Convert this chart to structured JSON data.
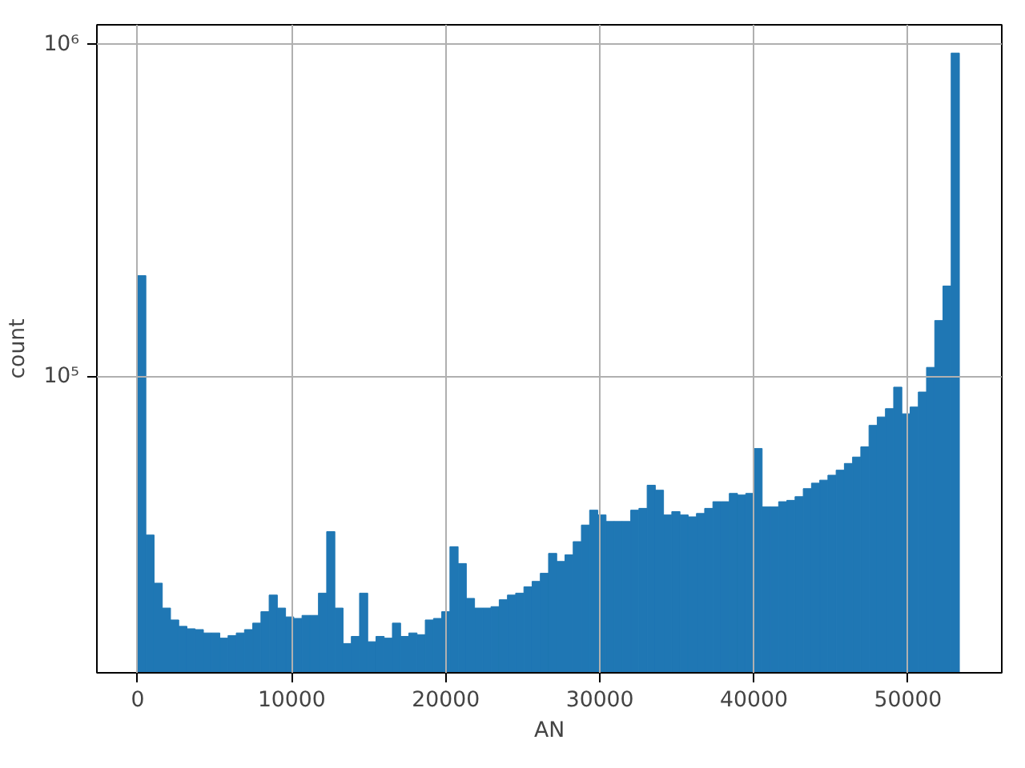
{
  "chart_data": {
    "type": "histogram",
    "xlabel": "AN",
    "ylabel": "count",
    "color": "#1f77b4",
    "log": "y",
    "grid": true,
    "bins": [
      0,
      533,
      1067,
      1600,
      2133,
      2667,
      3200,
      3733,
      4267,
      4800,
      5333,
      5867,
      6400,
      6933,
      7467,
      8000,
      8533,
      9067,
      9600,
      10133,
      10667,
      11200,
      11733,
      12267,
      12800,
      13333,
      13867,
      14400,
      14933,
      15467,
      16000,
      16533,
      17067,
      17600,
      18133,
      18667,
      19200,
      19733,
      20267,
      20800,
      21333,
      21867,
      22400,
      22933,
      23467,
      24000,
      24533,
      25067,
      25600,
      26133,
      26667,
      27200,
      27733,
      28267,
      28800,
      29333,
      29867,
      30400,
      30933,
      31467,
      32000,
      32533,
      33067,
      33600,
      34133,
      34667,
      35200,
      35733,
      36267,
      36800,
      37333,
      37867,
      38400,
      38933,
      39467,
      40000,
      40533,
      41067,
      41600,
      42133,
      42667,
      43200,
      43733,
      44267,
      44800,
      45333,
      45867,
      46400,
      46933,
      47467,
      48000,
      48533,
      49067,
      49600,
      50133,
      50667,
      51200,
      51733,
      52267,
      52800,
      53333
    ],
    "values": [
      202000,
      33500,
      24000,
      20200,
      18600,
      17800,
      17500,
      17400,
      17000,
      17000,
      16400,
      16700,
      17000,
      17400,
      18200,
      19700,
      22100,
      20200,
      19000,
      18800,
      19200,
      19200,
      22400,
      34300,
      20200,
      15800,
      16600,
      22400,
      16000,
      16600,
      16400,
      18200,
      16600,
      17000,
      16800,
      18600,
      18800,
      19700,
      30900,
      27500,
      21600,
      20200,
      20200,
      20400,
      21400,
      22100,
      22400,
      23400,
      24300,
      25700,
      29500,
      27900,
      29200,
      32000,
      35900,
      39800,
      38500,
      36800,
      36800,
      36800,
      39800,
      40300,
      47300,
      45700,
      38500,
      39400,
      38500,
      38000,
      38900,
      40300,
      42200,
      42200,
      44700,
      44200,
      44700,
      61000,
      40700,
      40700,
      42200,
      42600,
      43700,
      46200,
      48000,
      49000,
      50700,
      52500,
      55000,
      57500,
      61700,
      71600,
      75900,
      80400,
      93300,
      77600,
      81300,
      90200,
      107000,
      148000,
      188000,
      944000
    ],
    "xlim": [
      -2646,
      56085
    ],
    "ylim": [
      12900,
      1148000
    ],
    "xticks": [
      0,
      10000,
      20000,
      30000,
      40000,
      50000
    ],
    "yticks": [
      {
        "value": 100000,
        "label": "10⁵"
      },
      {
        "value": 1000000,
        "label": "10⁶"
      }
    ]
  }
}
